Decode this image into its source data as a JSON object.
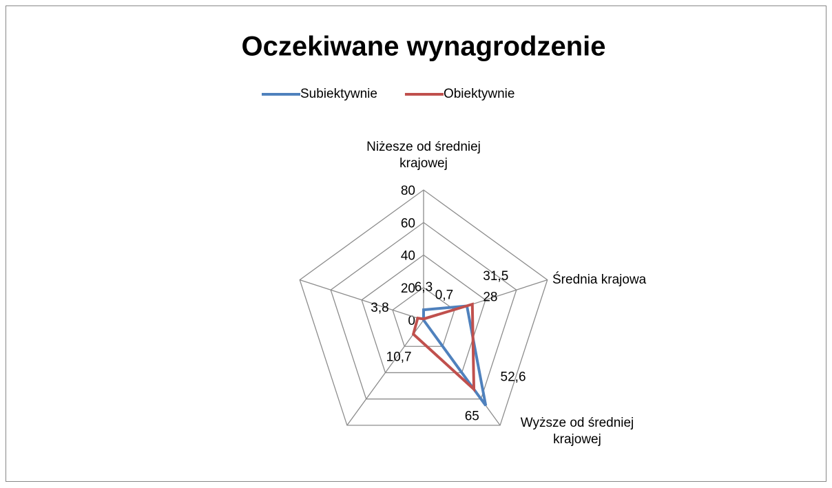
{
  "chart_data": {
    "type": "radar",
    "title": "Oczekiwane wynagrodzenie",
    "categories": [
      "Niżesze od średniej krajowej",
      "Średnia krajowa",
      "Wyższe od średniej krajowej",
      null,
      null
    ],
    "series": [
      {
        "name": "Subiektywnie",
        "color": "#4f81bd",
        "values": [
          6.3,
          28,
          65,
          0,
          0
        ],
        "value_labels": [
          "6,3",
          "28",
          "65",
          null,
          null
        ]
      },
      {
        "name": "Obiektywnie",
        "color": "#c0504d",
        "values": [
          0.7,
          31.5,
          52.6,
          10.7,
          3.8
        ],
        "value_labels": [
          "0,7",
          "31,5",
          "52,6",
          "10,7",
          "3,8"
        ]
      }
    ],
    "ylim": [
      0,
      80
    ],
    "yticks": [
      0,
      20,
      40,
      60,
      80
    ],
    "grid": true,
    "legend": "top"
  }
}
